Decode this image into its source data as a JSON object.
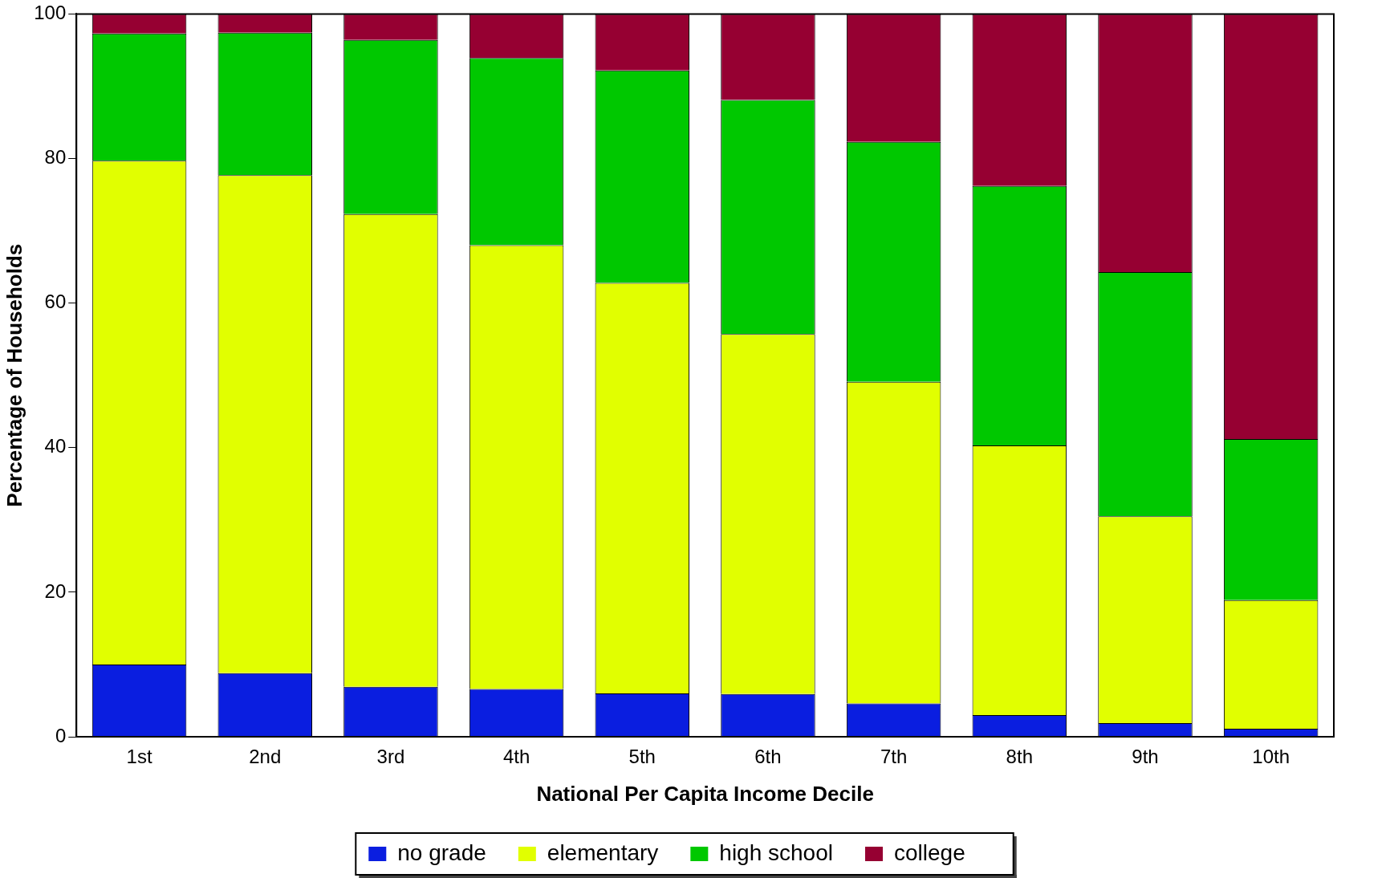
{
  "chart_data": {
    "type": "bar",
    "stacked": true,
    "xlabel": "National Per Capita Income Decile",
    "ylabel": "Percentage of Households",
    "categories": [
      "1st",
      "2nd",
      "3rd",
      "4th",
      "5th",
      "6th",
      "7th",
      "8th",
      "9th",
      "10th"
    ],
    "series": [
      {
        "name": "no grade",
        "color": "#0a1ee0",
        "values": [
          10.0,
          8.8,
          6.9,
          6.6,
          6.0,
          5.9,
          4.6,
          3.0,
          1.9,
          1.1
        ]
      },
      {
        "name": "elementary",
        "color": "#e1ff00",
        "values": [
          69.7,
          68.9,
          65.4,
          61.4,
          56.8,
          49.8,
          44.5,
          37.3,
          28.6,
          17.8
        ]
      },
      {
        "name": "high school",
        "color": "#00c800",
        "values": [
          17.6,
          19.7,
          24.1,
          25.9,
          29.4,
          32.4,
          33.2,
          35.9,
          33.8,
          22.3
        ]
      },
      {
        "name": "college",
        "color": "#960032",
        "values": [
          2.7,
          2.6,
          3.6,
          6.1,
          7.8,
          11.9,
          17.7,
          23.8,
          35.7,
          58.8
        ]
      }
    ],
    "ylim": [
      0,
      100
    ],
    "yticks": [
      0,
      20,
      40,
      60,
      80,
      100
    ],
    "grid": false,
    "legend": "bottom"
  }
}
